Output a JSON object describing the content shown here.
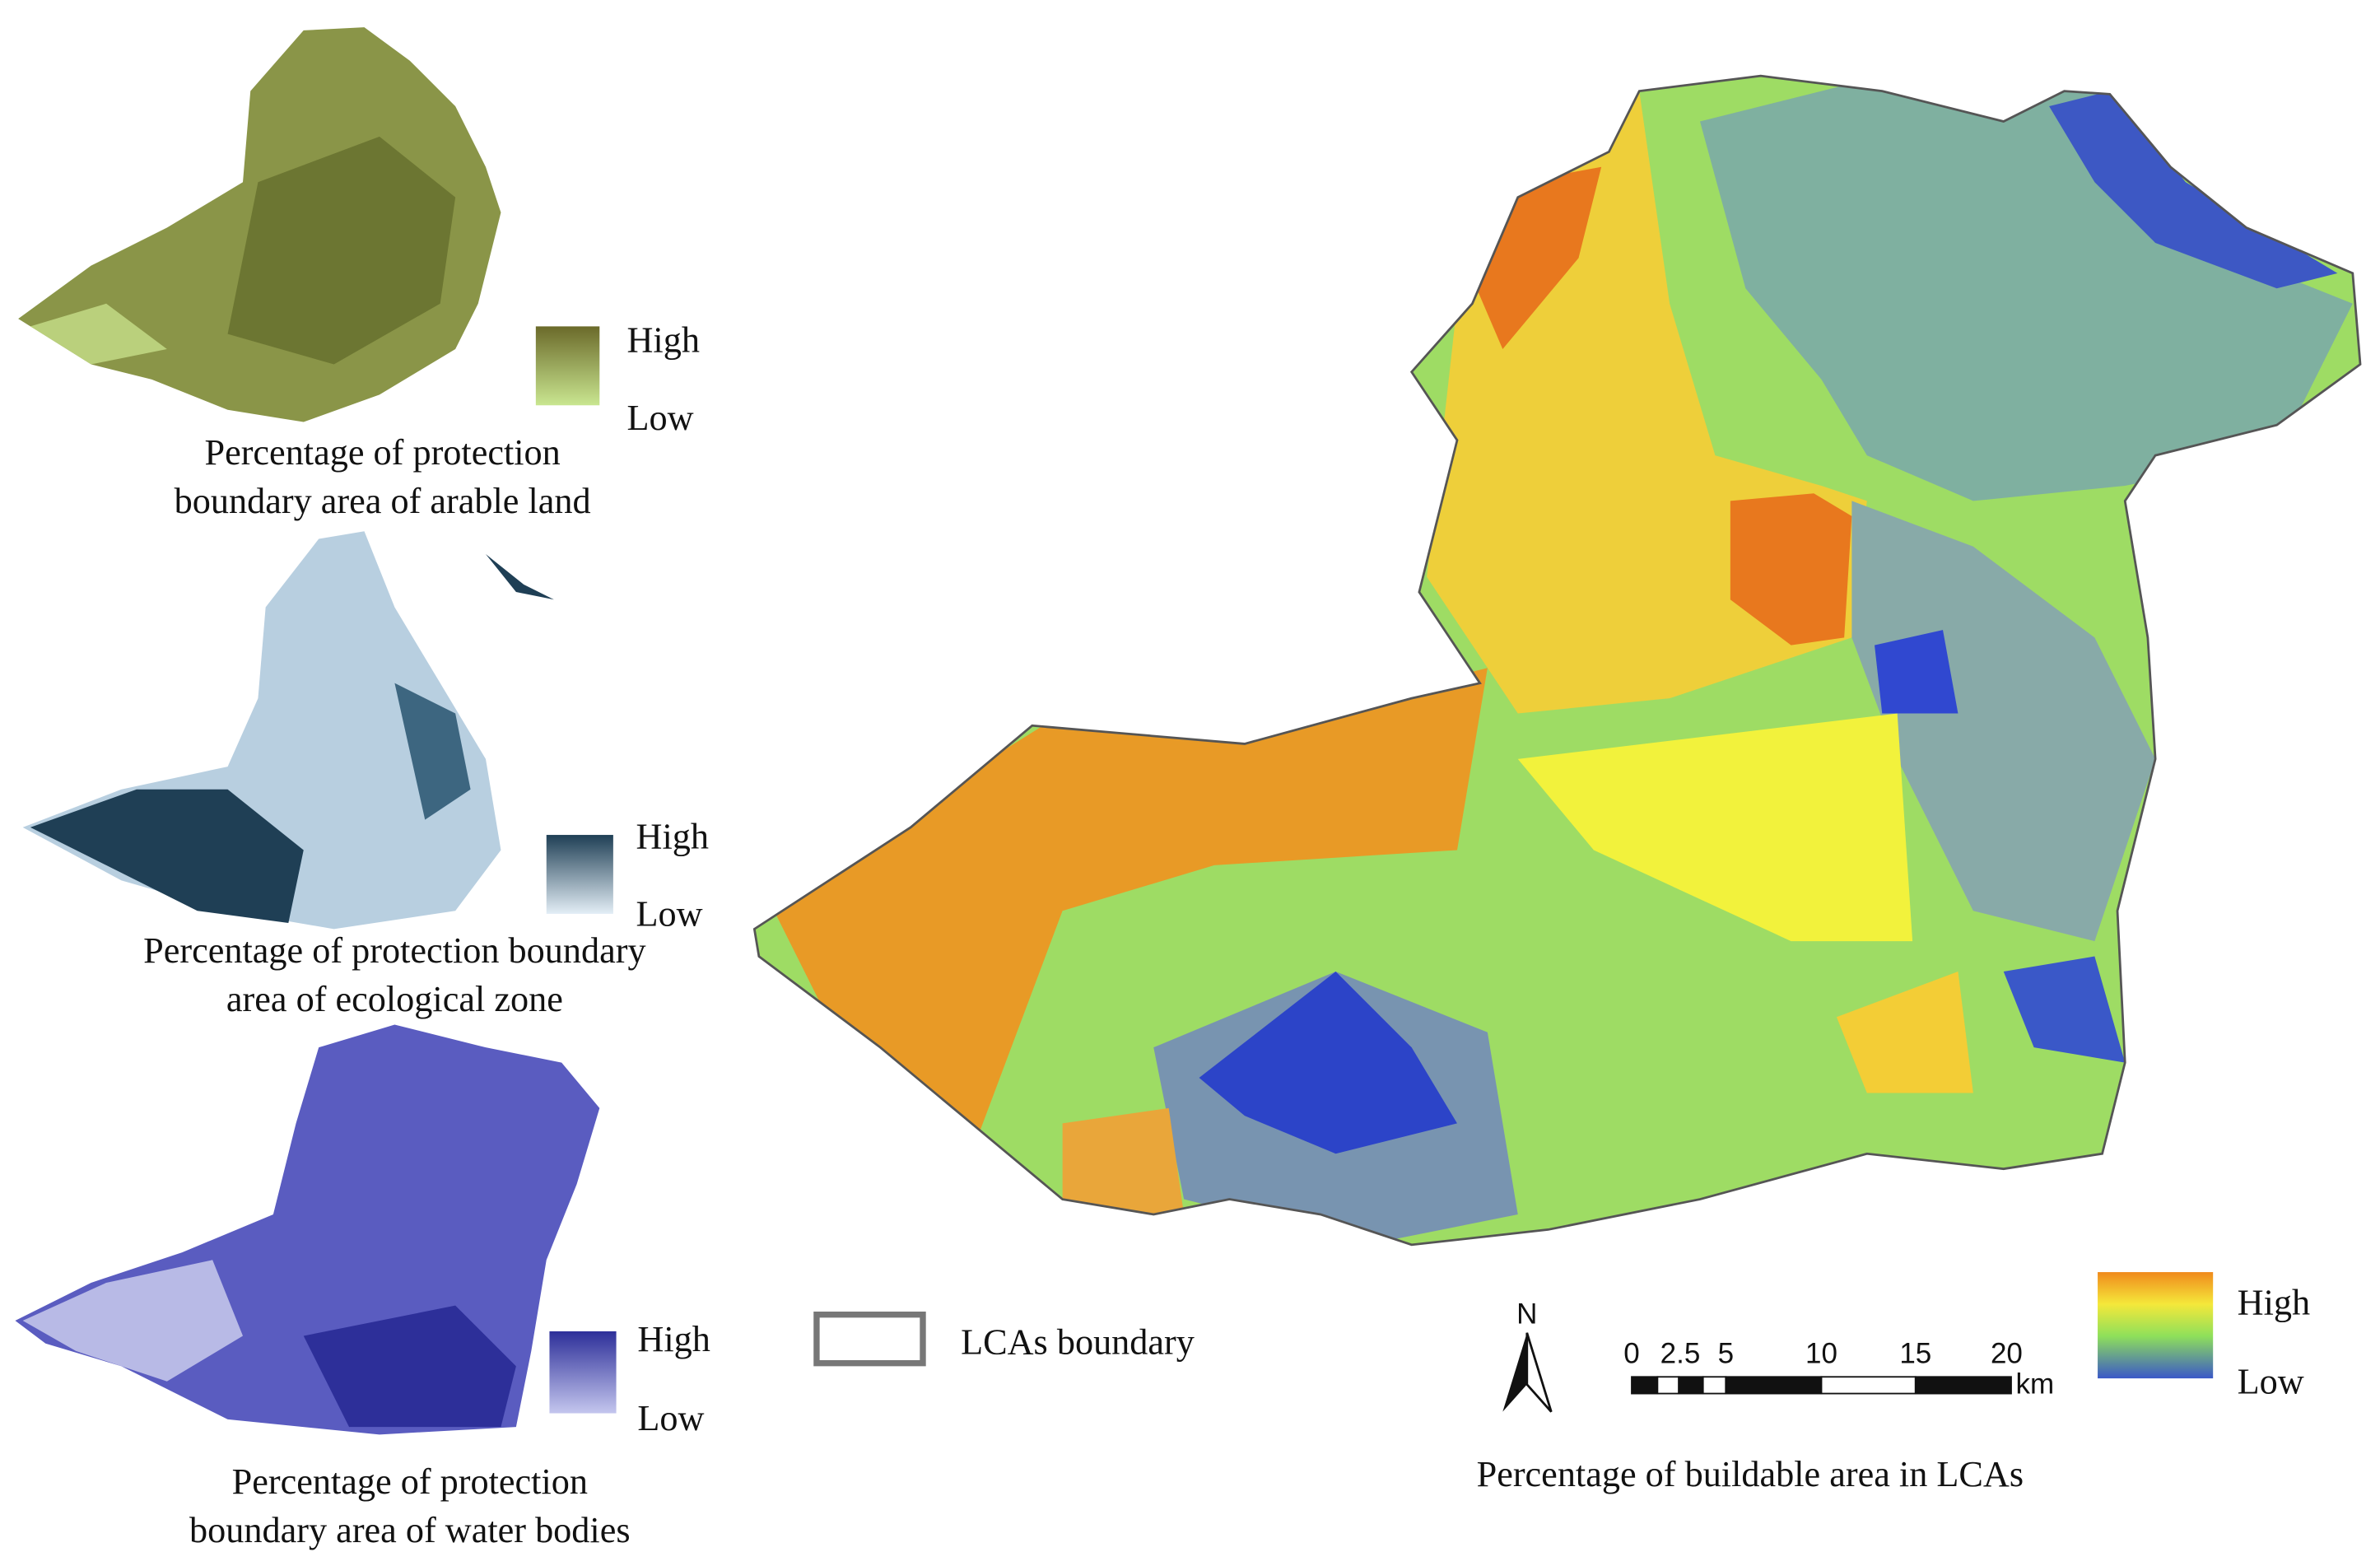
{
  "maps": [
    {
      "caption_lines": [
        "Percentage of protection",
        "boundary area of arable land"
      ],
      "legend": {
        "high": "High",
        "low": "Low"
      }
    },
    {
      "caption_lines": [
        "Percentage of protection boundary",
        "area of ecological zone"
      ],
      "legend": {
        "high": "High",
        "low": "Low"
      }
    },
    {
      "caption_lines": [
        "Percentage of protection",
        "boundary area of water bodies"
      ],
      "legend": {
        "high": "High",
        "low": "Low"
      }
    }
  ],
  "boundary_legend": "LCAs boundary",
  "main_map": {
    "caption": "Percentage of buildable area in LCAs",
    "legend": {
      "high": "High",
      "low": "Low"
    },
    "north": "N",
    "scale_bar": {
      "ticks": [
        "0",
        "2.5",
        "5",
        "10",
        "15",
        "20"
      ],
      "unit": "km"
    }
  }
}
